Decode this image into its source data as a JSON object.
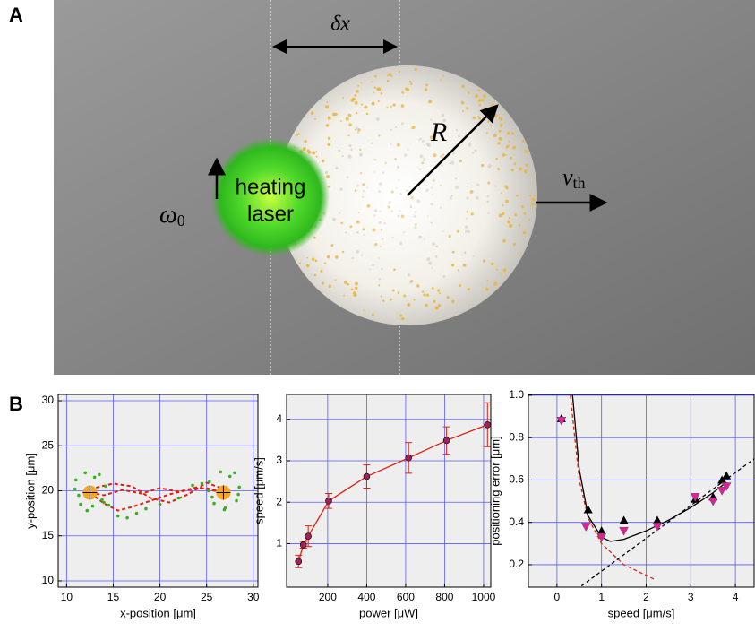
{
  "panels": {
    "a": "A",
    "b": "B"
  },
  "illustration": {
    "dx": "δx",
    "radius": "R",
    "laser_line1": "heating",
    "laser_line2": "laser",
    "omega": {
      "symbol": "ω",
      "subscript": "0"
    },
    "velocity": {
      "symbol": "v",
      "subscript": "th"
    }
  },
  "chart_data": [
    {
      "type": "scatter",
      "x_label": "x-position [μm]",
      "y_label": "y-position [μm]",
      "xlim": [
        9.1,
        30.5
      ],
      "ylim": [
        9.3,
        30.7
      ],
      "xticks": [
        10,
        15,
        20,
        25,
        30
      ],
      "yticks": [
        10,
        15,
        20,
        25,
        30
      ],
      "grid": true,
      "series": [
        {
          "mode": "lines",
          "dash": true,
          "color": "#e02010",
          "x": [
            12.5,
            14,
            16,
            18,
            20,
            22,
            24,
            26.8
          ],
          "y": [
            19.8,
            19.5,
            20.1,
            19.7,
            20.3,
            19.9,
            20.4,
            19.8
          ]
        },
        {
          "mode": "lines",
          "dash": true,
          "color": "#e02010",
          "x": [
            12.5,
            14,
            15.5,
            17,
            19,
            21,
            23,
            25,
            26.8
          ],
          "y": [
            19.8,
            18.6,
            17.8,
            18.2,
            18.9,
            19.6,
            20.1,
            20.3,
            19.8
          ]
        },
        {
          "mode": "lines",
          "dash": true,
          "color": "#e02010",
          "x": [
            12.5,
            15,
            17,
            19,
            21,
            23,
            25,
            26.8
          ],
          "y": [
            20.2,
            20.8,
            20.5,
            19.2,
            18.7,
            19.6,
            20.9,
            20.2
          ]
        },
        {
          "mode": "markers",
          "marker": "dot",
          "color": "#3cb01e",
          "x": [
            11.0,
            11.5,
            12.0,
            13.0,
            13.8,
            14.2,
            11.3,
            12.8,
            13.5,
            10.9,
            12.2,
            14.0,
            25.3,
            25.8,
            26.5,
            27.5,
            28.2,
            28.5,
            25.6,
            27.0,
            28.0,
            25.2,
            26.9,
            28.4,
            14.5,
            15.5,
            16.5,
            17.5,
            18.5,
            20.0,
            22.0,
            23.5,
            24.5
          ],
          "y": [
            21.2,
            18.5,
            22.0,
            21.5,
            19.0,
            20.5,
            19.5,
            18.3,
            21.8,
            20.2,
            17.8,
            18.7,
            21.0,
            18.6,
            22.1,
            21.6,
            18.9,
            20.4,
            19.3,
            18.1,
            22.0,
            20.0,
            17.9,
            19.6,
            18.4,
            17.2,
            17.0,
            17.5,
            18.0,
            18.5,
            19.2,
            20.6,
            20.8
          ]
        },
        {
          "mode": "markers",
          "marker": "target",
          "color": "#f5a623",
          "x": [
            12.5,
            26.8
          ],
          "y": [
            19.8,
            19.8
          ]
        }
      ]
    },
    {
      "type": "line",
      "x_label": "power [μW]",
      "y_label": "speed [μm/s]",
      "xlim": [
        -11,
        1037
      ],
      "ylim": [
        -0.05,
        4.6
      ],
      "xticks": [
        200,
        400,
        600,
        800,
        1000
      ],
      "yticks": [
        1,
        2,
        3,
        4
      ],
      "grid": true,
      "series": [
        {
          "mode": "lines+markers",
          "marker": "circle",
          "color": "#e02010",
          "marker_color": "#a0205a",
          "x": [
            50,
            75,
            100,
            205,
            400,
            615,
            810,
            1020
          ],
          "y": [
            0.57,
            0.97,
            1.18,
            2.03,
            2.62,
            3.07,
            3.49,
            3.87
          ],
          "errors": [
            0.15,
            0.08,
            0.25,
            0.18,
            0.28,
            0.37,
            0.33,
            0.53
          ]
        }
      ]
    },
    {
      "type": "scatter",
      "x_label": "speed [μm/s]",
      "y_label": "positioning error [μm]",
      "xlim": [
        -0.64,
        4.42
      ],
      "ylim": [
        0.094,
        1.004
      ],
      "xticks": [
        0,
        1,
        2,
        3,
        4
      ],
      "yticks": [
        0.2,
        0.4,
        0.6,
        0.8,
        {
          "value": 1,
          "label": "1.0"
        }
      ],
      "grid": true,
      "series": [
        {
          "mode": "lines",
          "dash": true,
          "color": "#e02010",
          "x": [
            0.3,
            0.5,
            0.7,
            1.0,
            1.5,
            2.0,
            2.2
          ],
          "y": [
            1.0,
            0.6,
            0.42,
            0.3,
            0.2,
            0.15,
            0.13
          ]
        },
        {
          "mode": "lines",
          "dash": true,
          "color": "#000000",
          "x": [
            0.55,
            4.42
          ],
          "y": [
            0.1,
            0.7
          ]
        },
        {
          "mode": "lines",
          "color": "#000000",
          "x": [
            0.35,
            0.5,
            0.7,
            1.0,
            1.2,
            1.5,
            2.0,
            2.5,
            3.0,
            3.5,
            3.8
          ],
          "y": [
            1.0,
            0.65,
            0.43,
            0.33,
            0.31,
            0.32,
            0.36,
            0.41,
            0.47,
            0.54,
            0.59
          ]
        },
        {
          "mode": "markers",
          "marker": "triangle-up",
          "color": "#000000",
          "x": [
            0.1,
            0.7,
            1.0,
            1.5,
            2.25,
            3.1,
            3.5,
            3.7,
            3.8
          ],
          "y": [
            0.89,
            0.46,
            0.36,
            0.41,
            0.41,
            0.51,
            0.52,
            0.6,
            0.62
          ]
        },
        {
          "mode": "markers",
          "marker": "triangle-down",
          "color": "#e0209a",
          "x": [
            0.1,
            0.65,
            1.0,
            1.5,
            2.25,
            3.1,
            3.5,
            3.7,
            3.8
          ],
          "y": [
            0.88,
            0.38,
            0.33,
            0.36,
            0.38,
            0.52,
            0.5,
            0.55,
            0.57
          ]
        }
      ]
    }
  ]
}
